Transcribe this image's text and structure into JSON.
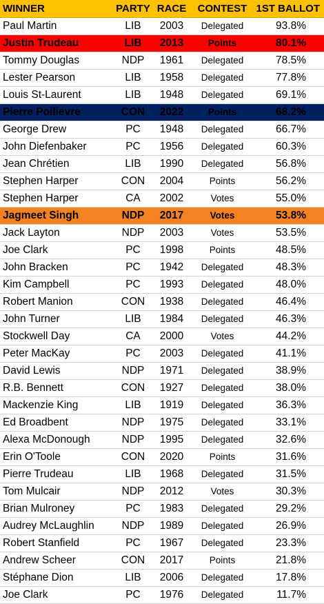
{
  "headers": {
    "winner": "WINNER",
    "party": "PARTY",
    "race": "RACE",
    "contest": "CONTEST",
    "ballot": "1ST BALLOT"
  },
  "colors": {
    "header_bg": "#ffc000",
    "highlight_red": "#ff0000",
    "highlight_navy": "#002060",
    "highlight_orange": "#f58220"
  },
  "rows": [
    {
      "winner": "Paul Martin",
      "party": "LIB",
      "race": "2003",
      "contest": "Delegated",
      "ballot": "93.8%"
    },
    {
      "winner": "Justin Trudeau",
      "party": "LIB",
      "race": "2013",
      "contest": "Points",
      "ballot": "80.1%",
      "highlight": "#ff0000"
    },
    {
      "winner": "Tommy Douglas",
      "party": "NDP",
      "race": "1961",
      "contest": "Delegated",
      "ballot": "78.5%"
    },
    {
      "winner": "Lester Pearson",
      "party": "LIB",
      "race": "1958",
      "contest": "Delegated",
      "ballot": "77.8%"
    },
    {
      "winner": "Louis St-Laurent",
      "party": "LIB",
      "race": "1948",
      "contest": "Delegated",
      "ballot": "69.1%"
    },
    {
      "winner": "Pierre Poilievre",
      "party": "CON",
      "race": "2022",
      "contest": "Points",
      "ballot": "68.2%",
      "highlight": "#002060"
    },
    {
      "winner": "George Drew",
      "party": "PC",
      "race": "1948",
      "contest": "Delegated",
      "ballot": "66.7%"
    },
    {
      "winner": "John Diefenbaker",
      "party": "PC",
      "race": "1956",
      "contest": "Delegated",
      "ballot": "60.3%"
    },
    {
      "winner": "Jean Chrétien",
      "party": "LIB",
      "race": "1990",
      "contest": "Delegated",
      "ballot": "56.8%"
    },
    {
      "winner": "Stephen Harper",
      "party": "CON",
      "race": "2004",
      "contest": "Points",
      "ballot": "56.2%"
    },
    {
      "winner": "Stephen Harper",
      "party": "CA",
      "race": "2002",
      "contest": "Votes",
      "ballot": "55.0%"
    },
    {
      "winner": "Jagmeet Singh",
      "party": "NDP",
      "race": "2017",
      "contest": "Votes",
      "ballot": "53.8%",
      "highlight": "#f58220"
    },
    {
      "winner": "Jack Layton",
      "party": "NDP",
      "race": "2003",
      "contest": "Votes",
      "ballot": "53.5%"
    },
    {
      "winner": "Joe Clark",
      "party": "PC",
      "race": "1998",
      "contest": "Points",
      "ballot": "48.5%"
    },
    {
      "winner": "John Bracken",
      "party": "PC",
      "race": "1942",
      "contest": "Delegated",
      "ballot": "48.3%"
    },
    {
      "winner": "Kim Campbell",
      "party": "PC",
      "race": "1993",
      "contest": "Delegated",
      "ballot": "48.0%"
    },
    {
      "winner": "Robert Manion",
      "party": "CON",
      "race": "1938",
      "contest": "Delegated",
      "ballot": "46.4%"
    },
    {
      "winner": "John Turner",
      "party": "LIB",
      "race": "1984",
      "contest": "Delegated",
      "ballot": "46.3%"
    },
    {
      "winner": "Stockwell Day",
      "party": "CA",
      "race": "2000",
      "contest": "Votes",
      "ballot": "44.2%"
    },
    {
      "winner": "Peter MacKay",
      "party": "PC",
      "race": "2003",
      "contest": "Delegated",
      "ballot": "41.1%"
    },
    {
      "winner": "David Lewis",
      "party": "NDP",
      "race": "1971",
      "contest": "Delegated",
      "ballot": "38.9%"
    },
    {
      "winner": "R.B. Bennett",
      "party": "CON",
      "race": "1927",
      "contest": "Delegated",
      "ballot": "38.0%"
    },
    {
      "winner": "Mackenzie King",
      "party": "LIB",
      "race": "1919",
      "contest": "Delegated",
      "ballot": "36.3%"
    },
    {
      "winner": "Ed Broadbent",
      "party": "NDP",
      "race": "1975",
      "contest": "Delegated",
      "ballot": "33.1%"
    },
    {
      "winner": "Alexa McDonough",
      "party": "NDP",
      "race": "1995",
      "contest": "Delegated",
      "ballot": "32.6%"
    },
    {
      "winner": "Erin O'Toole",
      "party": "CON",
      "race": "2020",
      "contest": "Points",
      "ballot": "31.6%"
    },
    {
      "winner": "Pierre Trudeau",
      "party": "LIB",
      "race": "1968",
      "contest": "Delegated",
      "ballot": "31.5%"
    },
    {
      "winner": "Tom Mulcair",
      "party": "NDP",
      "race": "2012",
      "contest": "Votes",
      "ballot": "30.3%"
    },
    {
      "winner": "Brian Mulroney",
      "party": "PC",
      "race": "1983",
      "contest": "Delegated",
      "ballot": "29.2%"
    },
    {
      "winner": "Audrey McLaughlin",
      "party": "NDP",
      "race": "1989",
      "contest": "Delegated",
      "ballot": "26.9%"
    },
    {
      "winner": "Robert Stanfield",
      "party": "PC",
      "race": "1967",
      "contest": "Delegated",
      "ballot": "23.3%"
    },
    {
      "winner": "Andrew Scheer",
      "party": "CON",
      "race": "2017",
      "contest": "Points",
      "ballot": "21.8%"
    },
    {
      "winner": "Stéphane Dion",
      "party": "LIB",
      "race": "2006",
      "contest": "Delegated",
      "ballot": "17.8%"
    },
    {
      "winner": "Joe Clark",
      "party": "PC",
      "race": "1976",
      "contest": "Delegated",
      "ballot": "11.7%"
    }
  ]
}
